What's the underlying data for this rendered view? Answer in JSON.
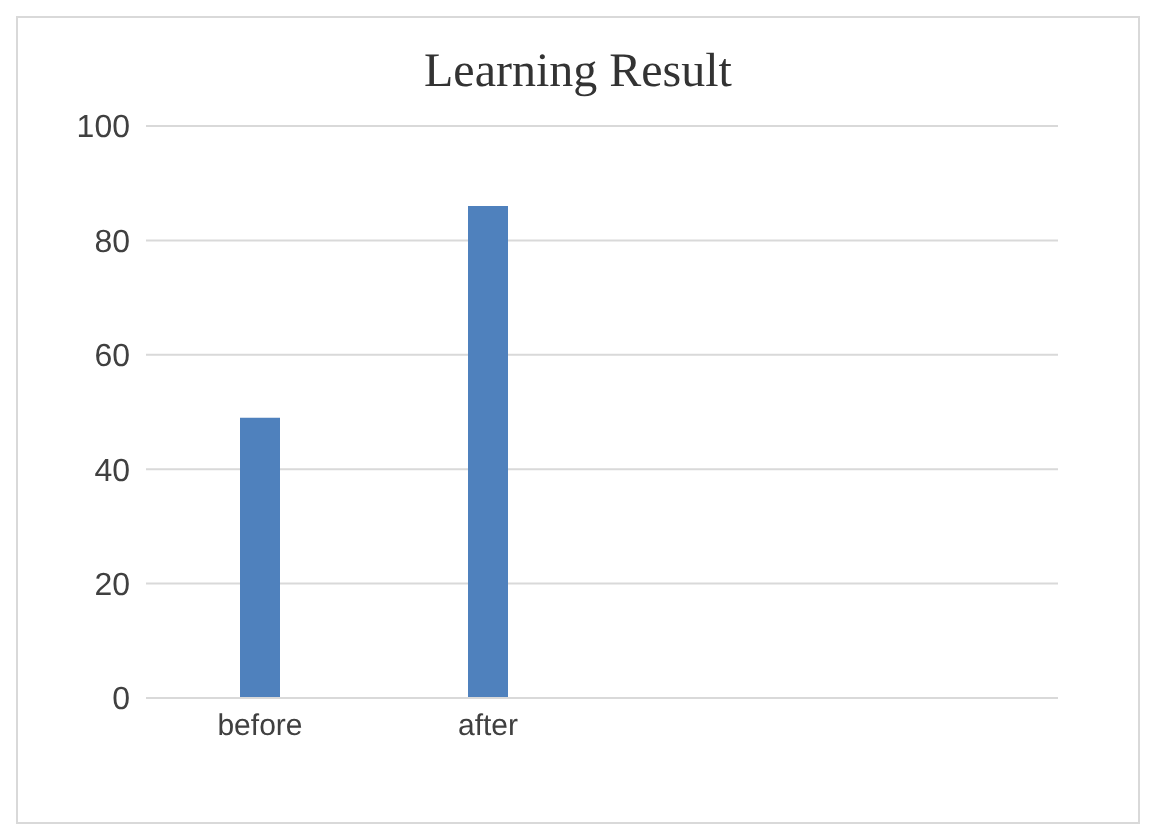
{
  "chart_data": {
    "type": "bar",
    "title": "Learning Result",
    "categories": [
      "before",
      "after",
      null,
      null
    ],
    "values": [
      49,
      86,
      null,
      null
    ],
    "color": "#4f81bd",
    "ylim": [
      0,
      100
    ],
    "yticks": [
      0,
      20,
      40,
      60,
      80,
      100
    ],
    "grid": "y",
    "legend": false
  }
}
